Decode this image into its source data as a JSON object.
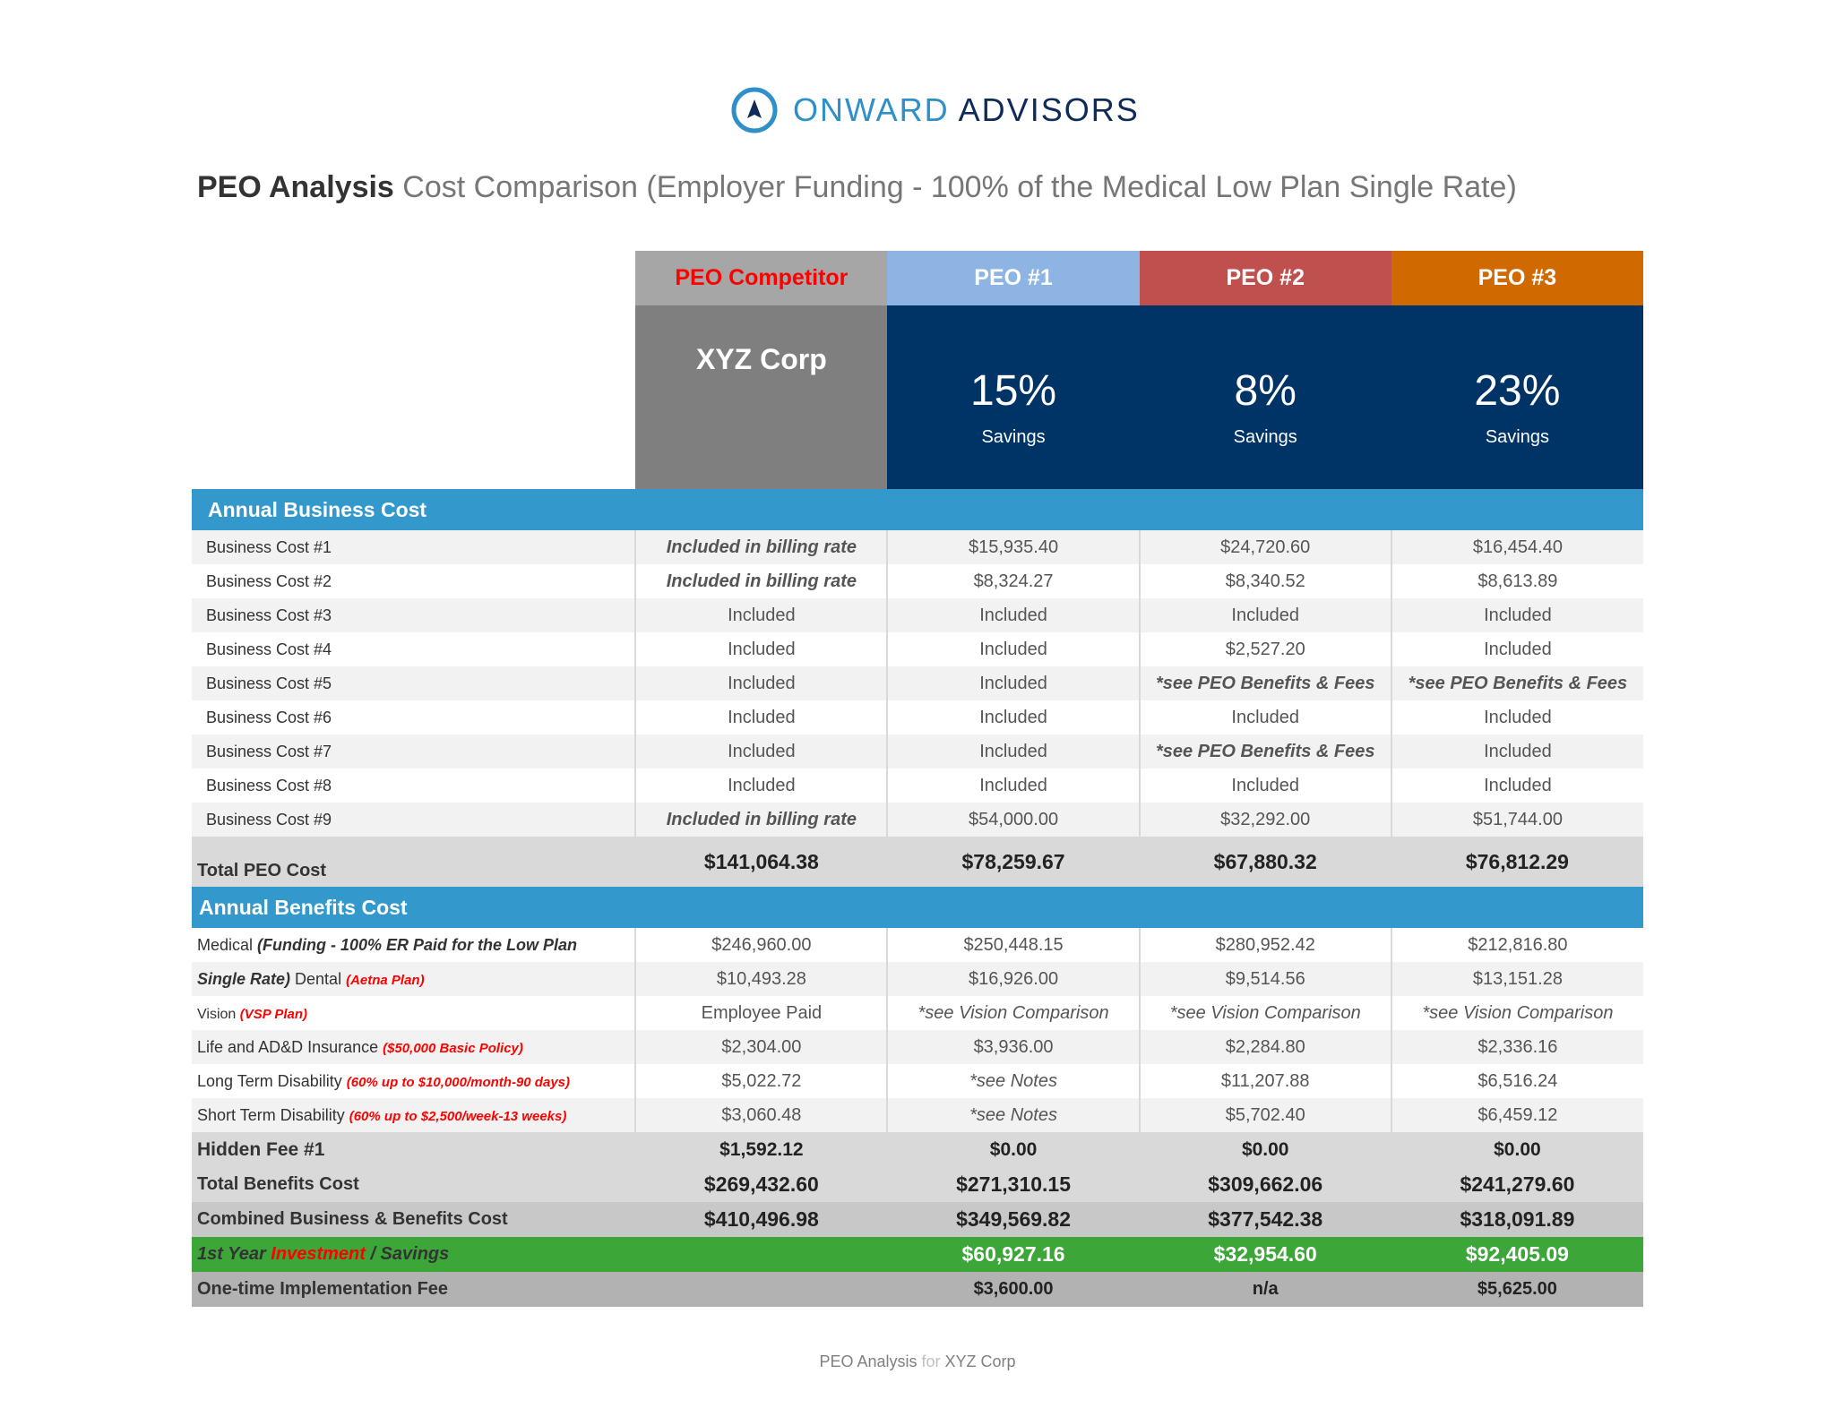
{
  "brand": {
    "word1": "ONWARD",
    "word2": "ADVISORS"
  },
  "title": {
    "bold": "PEO Analysis",
    "rest": "Cost Comparison (Employer Funding - 100% of the Medical Low Plan Single Rate)"
  },
  "columns": {
    "competitor": {
      "label": "PEO Competitor",
      "name": "XYZ Corp"
    },
    "peo1": {
      "label": "PEO #1",
      "savings": "15%",
      "savings_label": "Savings"
    },
    "peo2": {
      "label": "PEO #2",
      "savings": "8%",
      "savings_label": "Savings"
    },
    "peo3": {
      "label": "PEO #3",
      "savings": "23%",
      "savings_label": "Savings"
    }
  },
  "business": {
    "header": "Annual Business Cost",
    "rows": [
      {
        "label": "Business Cost #1",
        "comp": "Included in billing rate",
        "p1": "$15,935.40",
        "p2": "$24,720.60",
        "p3": "$16,454.40"
      },
      {
        "label": "Business Cost #2",
        "comp": "Included in billing rate",
        "p1": "$8,324.27",
        "p2": "$8,340.52",
        "p3": "$8,613.89"
      },
      {
        "label": "Business Cost #3",
        "comp": "Included",
        "p1": "Included",
        "p2": "Included",
        "p3": "Included"
      },
      {
        "label": "Business Cost #4",
        "comp": "Included",
        "p1": "Included",
        "p2": "$2,527.20",
        "p3": "Included"
      },
      {
        "label": "Business Cost #5",
        "comp": "Included",
        "p1": "Included",
        "p2": "*see PEO Benefits & Fees",
        "p3": "*see PEO Benefits & Fees"
      },
      {
        "label": "Business Cost #6",
        "comp": "Included",
        "p1": "Included",
        "p2": "Included",
        "p3": "Included"
      },
      {
        "label": "Business Cost #7",
        "comp": "Included",
        "p1": "Included",
        "p2": "*see PEO Benefits & Fees",
        "p3": "Included"
      },
      {
        "label": "Business Cost #8",
        "comp": "Included",
        "p1": "Included",
        "p2": "Included",
        "p3": "Included"
      },
      {
        "label": "Business Cost #9",
        "comp": "Included in billing rate",
        "p1": "$54,000.00",
        "p2": "$32,292.00",
        "p3": "$51,744.00"
      }
    ],
    "total": {
      "label": "Total PEO Cost",
      "comp": "$141,064.38",
      "p1": "$78,259.67",
      "p2": "$67,880.32",
      "p3": "$76,812.29"
    }
  },
  "benefits": {
    "header": "Annual Benefits Cost",
    "rows": [
      {
        "label_a": "Medical ",
        "label_b": "(Funding - 100% ER Paid for the Low Plan",
        "comp": "$246,960.00",
        "p1": "$250,448.15",
        "p2": "$280,952.42",
        "p3": "$212,816.80"
      },
      {
        "label_a": "Single Rate)",
        "label_b": " Dental ",
        "label_c": "(Aetna Plan)",
        "comp": "$10,493.28",
        "p1": "$16,926.00",
        "p2": "$9,514.56",
        "p3": "$13,151.28"
      },
      {
        "label_a": "Vision ",
        "label_b": "(VSP Plan)",
        "comp": "Employee Paid",
        "p1": "*see Vision Comparison",
        "p2": "*see Vision Comparison",
        "p3": "*see Vision Comparison"
      },
      {
        "label_a": "Life and AD&D Insurance ",
        "label_b": "($50,000 Basic Policy)",
        "comp": "$2,304.00",
        "p1": "$3,936.00",
        "p2": "$2,284.80",
        "p3": "$2,336.16"
      },
      {
        "label_a": "Long Term Disability ",
        "label_b": "(60% up to $10,000/month-90 days)",
        "comp": "$5,022.72",
        "p1": "*see Notes",
        "p2": "$11,207.88",
        "p3": "$6,516.24"
      },
      {
        "label_a": "Short Term Disability ",
        "label_b": "(60% up to $2,500/week-13 weeks)",
        "comp": "$3,060.48",
        "p1": "*see Notes",
        "p2": "$5,702.40",
        "p3": "$6,459.12"
      }
    ],
    "hidden_fee": {
      "label": "Hidden Fee #1",
      "comp": "$1,592.12",
      "p1": "$0.00",
      "p2": "$0.00",
      "p3": "$0.00"
    },
    "total": {
      "label": "Total Benefits Cost",
      "comp": "$269,432.60",
      "p1": "$271,310.15",
      "p2": "$309,662.06",
      "p3": "$241,279.60"
    },
    "combined": {
      "label": "Combined Business & Benefits Cost",
      "comp": "$410,496.98",
      "p1": "$349,569.82",
      "p2": "$377,542.38",
      "p3": "$318,091.89"
    },
    "savings": {
      "label_a": "1st Year ",
      "label_b": "Investment",
      "label_c": " / Savings",
      "comp": "",
      "p1": "$60,927.16",
      "p2": "$32,954.60",
      "p3": "$92,405.09"
    },
    "implementation": {
      "label": "One-time Implementation Fee",
      "comp": "",
      "p1": "$3,600.00",
      "p2": "n/a",
      "p3": "$5,625.00"
    }
  },
  "footer": {
    "a": "PEO Analysis",
    "b": " for ",
    "c": "XYZ Corp"
  },
  "colors": {
    "brand_blue": "#2e8fc9",
    "navy": "#003366",
    "section_blue": "#3399cc",
    "green": "#3da639",
    "peo1": "#8eb4e3",
    "peo2": "#c0504d",
    "peo3": "#d06a00"
  }
}
